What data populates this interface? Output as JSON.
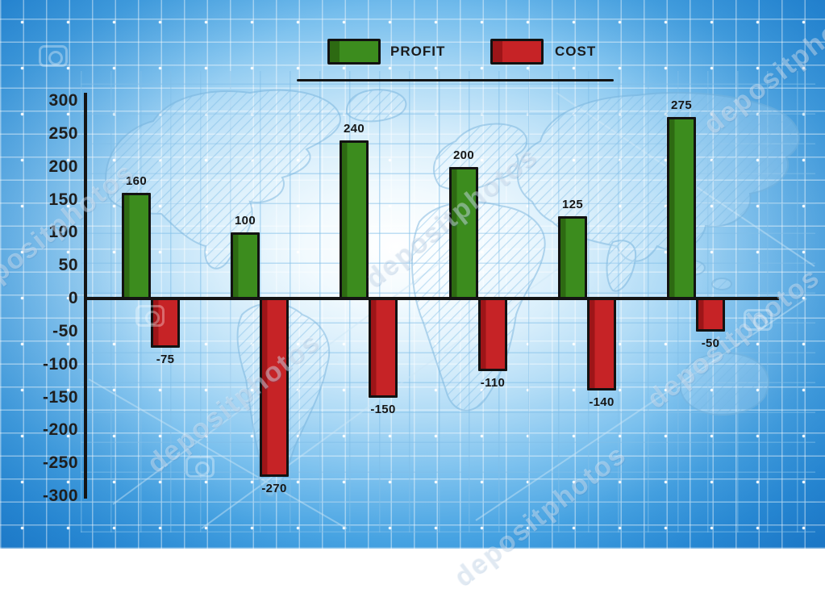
{
  "watermark": {
    "text": "depositphotos",
    "logo_icon": "camera-icon"
  },
  "legend": {
    "profit_label": "PROFIT",
    "cost_label": "COST",
    "profit_color": "#3c8c1e",
    "cost_color": "#c62326"
  },
  "chart_data": {
    "type": "bar",
    "title": "",
    "xlabel": "",
    "ylabel": "",
    "categories": [
      "",
      "",
      "",
      "",
      "",
      ""
    ],
    "series": [
      {
        "name": "PROFIT",
        "color": "#3c8c1e",
        "color_dark": "#2d6a12",
        "values": [
          160,
          100,
          240,
          200,
          125,
          275
        ]
      },
      {
        "name": "COST",
        "color": "#c62326",
        "color_dark": "#9d1518",
        "values": [
          -75,
          -270,
          -150,
          -110,
          -140,
          -50
        ]
      }
    ],
    "value_labels": {
      "profit": [
        "160",
        "100",
        "240",
        "200",
        "125",
        "275"
      ],
      "cost": [
        "-75",
        "-270",
        "-150",
        "-110",
        "-140",
        "-50"
      ]
    },
    "yticks": [
      300,
      250,
      200,
      150,
      100,
      50,
      0,
      -50,
      -100,
      -150,
      -200,
      -250,
      -300
    ],
    "ylim": [
      -300,
      300
    ],
    "ytick_step": 50,
    "grid": true,
    "legend_position": "top-center",
    "bar_outline_color": "#141414",
    "axis_color": "#141414",
    "background_accent": "#2e96da"
  }
}
